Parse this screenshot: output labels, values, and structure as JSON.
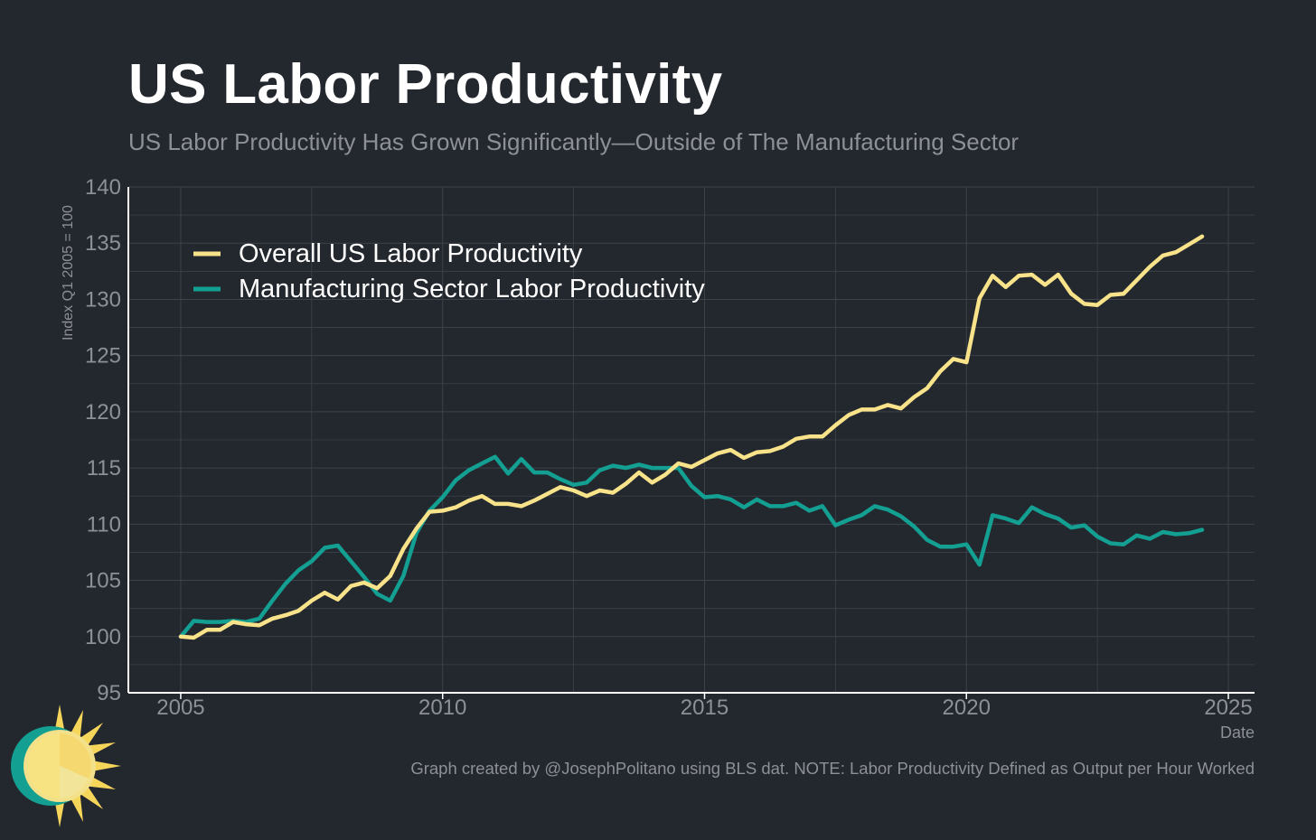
{
  "title": "US Labor Productivity",
  "subtitle": "US Labor Productivity Has Grown Significantly—Outside of The Manufacturing Sector",
  "footer": "Graph created by @JosephPolitano using BLS dat. NOTE: Labor Productivity Defined as Output per Hour Worked",
  "colors": {
    "background": "#23272e",
    "grid": "#3d424b",
    "axis": "#ffffff",
    "text_muted": "#8d9096",
    "overall": "#f8e38a",
    "manufacturing": "#13a092"
  },
  "chart_data": {
    "type": "line",
    "title": "US Labor Productivity",
    "xlabel": "Date",
    "ylabel": "Index Q1 2005 = 100",
    "xlim": [
      2004.0,
      2025.5
    ],
    "ylim": [
      95,
      140
    ],
    "xticks": [
      2005,
      2010,
      2015,
      2020,
      2025
    ],
    "yticks": [
      95,
      100,
      105,
      110,
      115,
      120,
      125,
      130,
      135,
      140
    ],
    "grid": true,
    "legend_position": "top-left",
    "series": [
      {
        "name": "Overall US Labor Productivity",
        "color": "#f8e38a",
        "points": [
          [
            2005.0,
            100.0
          ],
          [
            2005.25,
            99.9
          ],
          [
            2005.5,
            100.6
          ],
          [
            2005.75,
            100.6
          ],
          [
            2006.0,
            101.3
          ],
          [
            2006.25,
            101.1
          ],
          [
            2006.5,
            101.0
          ],
          [
            2006.75,
            101.6
          ],
          [
            2007.0,
            101.9
          ],
          [
            2007.25,
            102.3
          ],
          [
            2007.5,
            103.2
          ],
          [
            2007.75,
            103.9
          ],
          [
            2008.0,
            103.3
          ],
          [
            2008.25,
            104.5
          ],
          [
            2008.5,
            104.8
          ],
          [
            2008.75,
            104.3
          ],
          [
            2009.0,
            105.4
          ],
          [
            2009.25,
            107.8
          ],
          [
            2009.5,
            109.6
          ],
          [
            2009.75,
            111.1
          ],
          [
            2010.0,
            111.2
          ],
          [
            2010.25,
            111.5
          ],
          [
            2010.5,
            112.1
          ],
          [
            2010.75,
            112.5
          ],
          [
            2011.0,
            111.8
          ],
          [
            2011.25,
            111.8
          ],
          [
            2011.5,
            111.6
          ],
          [
            2011.75,
            112.1
          ],
          [
            2012.0,
            112.7
          ],
          [
            2012.25,
            113.3
          ],
          [
            2012.5,
            113.0
          ],
          [
            2012.75,
            112.5
          ],
          [
            2013.0,
            113.0
          ],
          [
            2013.25,
            112.8
          ],
          [
            2013.5,
            113.6
          ],
          [
            2013.75,
            114.6
          ],
          [
            2014.0,
            113.7
          ],
          [
            2014.25,
            114.4
          ],
          [
            2014.5,
            115.4
          ],
          [
            2014.75,
            115.1
          ],
          [
            2015.0,
            115.7
          ],
          [
            2015.25,
            116.3
          ],
          [
            2015.5,
            116.6
          ],
          [
            2015.75,
            115.9
          ],
          [
            2016.0,
            116.4
          ],
          [
            2016.25,
            116.5
          ],
          [
            2016.5,
            116.9
          ],
          [
            2016.75,
            117.6
          ],
          [
            2017.0,
            117.8
          ],
          [
            2017.25,
            117.8
          ],
          [
            2017.5,
            118.8
          ],
          [
            2017.75,
            119.7
          ],
          [
            2018.0,
            120.2
          ],
          [
            2018.25,
            120.2
          ],
          [
            2018.5,
            120.6
          ],
          [
            2018.75,
            120.3
          ],
          [
            2019.0,
            121.3
          ],
          [
            2019.25,
            122.1
          ],
          [
            2019.5,
            123.6
          ],
          [
            2019.75,
            124.7
          ],
          [
            2020.0,
            124.4
          ],
          [
            2020.25,
            130.1
          ],
          [
            2020.5,
            132.1
          ],
          [
            2020.75,
            131.1
          ],
          [
            2021.0,
            132.1
          ],
          [
            2021.25,
            132.2
          ],
          [
            2021.5,
            131.3
          ],
          [
            2021.75,
            132.2
          ],
          [
            2022.0,
            130.5
          ],
          [
            2022.25,
            129.6
          ],
          [
            2022.5,
            129.5
          ],
          [
            2022.75,
            130.4
          ],
          [
            2023.0,
            130.5
          ],
          [
            2023.25,
            131.7
          ],
          [
            2023.5,
            132.9
          ],
          [
            2023.75,
            133.9
          ],
          [
            2024.0,
            134.2
          ],
          [
            2024.25,
            134.9
          ],
          [
            2024.5,
            135.6
          ]
        ]
      },
      {
        "name": "Manufacturing Sector Labor Productivity",
        "color": "#13a092",
        "points": [
          [
            2005.0,
            100.0
          ],
          [
            2005.25,
            101.4
          ],
          [
            2005.5,
            101.3
          ],
          [
            2005.75,
            101.3
          ],
          [
            2006.0,
            101.4
          ],
          [
            2006.25,
            101.3
          ],
          [
            2006.5,
            101.6
          ],
          [
            2006.75,
            103.2
          ],
          [
            2007.0,
            104.7
          ],
          [
            2007.25,
            105.9
          ],
          [
            2007.5,
            106.7
          ],
          [
            2007.75,
            107.9
          ],
          [
            2008.0,
            108.1
          ],
          [
            2008.25,
            106.7
          ],
          [
            2008.5,
            105.3
          ],
          [
            2008.75,
            103.8
          ],
          [
            2009.0,
            103.2
          ],
          [
            2009.25,
            105.4
          ],
          [
            2009.5,
            109.2
          ],
          [
            2009.75,
            111.2
          ],
          [
            2010.0,
            112.4
          ],
          [
            2010.25,
            113.9
          ],
          [
            2010.5,
            114.8
          ],
          [
            2010.75,
            115.4
          ],
          [
            2011.0,
            116.0
          ],
          [
            2011.25,
            114.5
          ],
          [
            2011.5,
            115.8
          ],
          [
            2011.75,
            114.6
          ],
          [
            2012.0,
            114.6
          ],
          [
            2012.25,
            114.0
          ],
          [
            2012.5,
            113.5
          ],
          [
            2012.75,
            113.7
          ],
          [
            2013.0,
            114.8
          ],
          [
            2013.25,
            115.2
          ],
          [
            2013.5,
            115.0
          ],
          [
            2013.75,
            115.3
          ],
          [
            2014.0,
            115.0
          ],
          [
            2014.25,
            115.0
          ],
          [
            2014.5,
            115.0
          ],
          [
            2014.75,
            113.4
          ],
          [
            2015.0,
            112.4
          ],
          [
            2015.25,
            112.5
          ],
          [
            2015.5,
            112.2
          ],
          [
            2015.75,
            111.5
          ],
          [
            2016.0,
            112.2
          ],
          [
            2016.25,
            111.6
          ],
          [
            2016.5,
            111.6
          ],
          [
            2016.75,
            111.9
          ],
          [
            2017.0,
            111.2
          ],
          [
            2017.25,
            111.6
          ],
          [
            2017.5,
            109.9
          ],
          [
            2017.75,
            110.4
          ],
          [
            2018.0,
            110.8
          ],
          [
            2018.25,
            111.6
          ],
          [
            2018.5,
            111.3
          ],
          [
            2018.75,
            110.7
          ],
          [
            2019.0,
            109.8
          ],
          [
            2019.25,
            108.6
          ],
          [
            2019.5,
            108.0
          ],
          [
            2019.75,
            108.0
          ],
          [
            2020.0,
            108.2
          ],
          [
            2020.25,
            106.4
          ],
          [
            2020.5,
            110.8
          ],
          [
            2020.75,
            110.5
          ],
          [
            2021.0,
            110.1
          ],
          [
            2021.25,
            111.5
          ],
          [
            2021.5,
            110.9
          ],
          [
            2021.75,
            110.5
          ],
          [
            2022.0,
            109.7
          ],
          [
            2022.25,
            109.9
          ],
          [
            2022.5,
            108.9
          ],
          [
            2022.75,
            108.3
          ],
          [
            2023.0,
            108.2
          ],
          [
            2023.25,
            109.0
          ],
          [
            2023.5,
            108.7
          ],
          [
            2023.75,
            109.3
          ],
          [
            2024.0,
            109.1
          ],
          [
            2024.25,
            109.2
          ],
          [
            2024.5,
            109.5
          ]
        ]
      }
    ]
  }
}
